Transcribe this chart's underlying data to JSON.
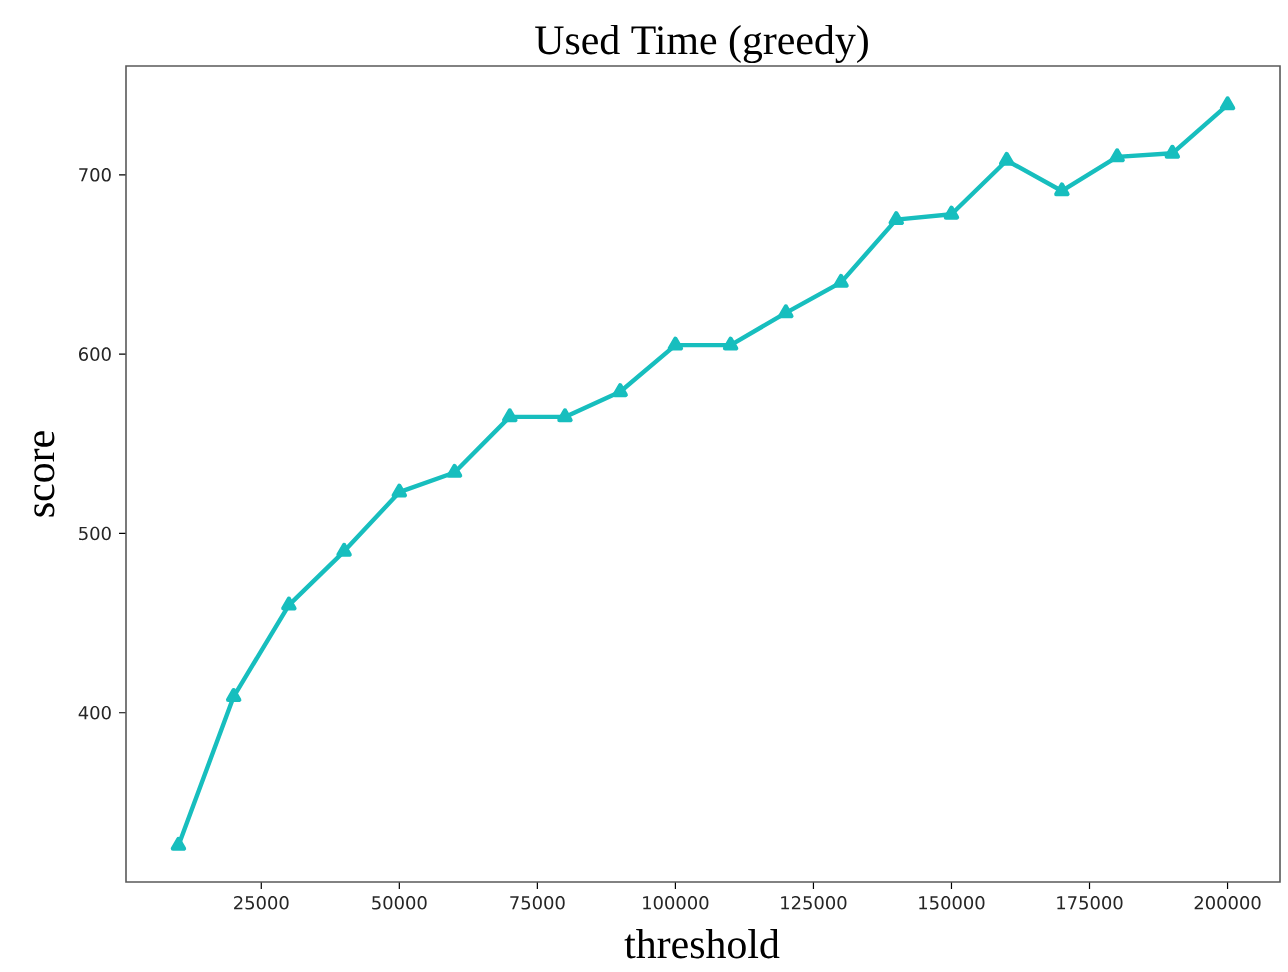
{
  "chart_data": {
    "type": "line",
    "title": "Used Time (greedy)",
    "xlabel": "threshold",
    "ylabel": "score",
    "x": [
      10000,
      20000,
      30000,
      40000,
      50000,
      60000,
      70000,
      80000,
      90000,
      100000,
      110000,
      120000,
      130000,
      140000,
      150000,
      160000,
      170000,
      180000,
      190000,
      200000
    ],
    "series": [
      {
        "color": "#17bebe",
        "values": [
          326,
          409,
          460,
          490,
          523,
          534,
          565,
          565,
          579,
          605,
          605,
          623,
          640,
          675,
          678,
          708,
          691,
          710,
          712,
          739
        ]
      }
    ],
    "xlim": [
      500,
      209500
    ],
    "ylim": [
      305.6,
      760.7
    ],
    "xticks": [
      25000,
      50000,
      75000,
      100000,
      125000,
      150000,
      175000,
      200000
    ],
    "yticks": [
      400,
      500,
      600,
      700
    ],
    "marker": "triangle",
    "line_style": "solid"
  }
}
